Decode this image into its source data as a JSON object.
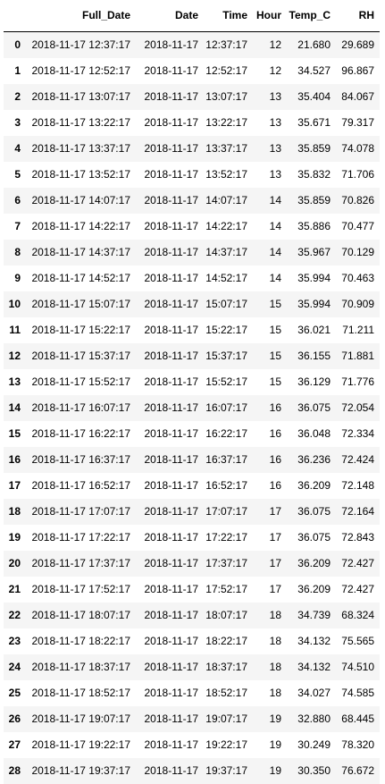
{
  "table": {
    "index_header": "",
    "columns": [
      "Full_Date",
      "Date",
      "Time",
      "Hour",
      "Temp_C",
      "RH"
    ],
    "rows": [
      {
        "index": "0",
        "cells": [
          "2018-11-17 12:37:17",
          "2018-11-17",
          "12:37:17",
          "12",
          "21.680",
          "29.689"
        ]
      },
      {
        "index": "1",
        "cells": [
          "2018-11-17 12:52:17",
          "2018-11-17",
          "12:52:17",
          "12",
          "34.527",
          "96.867"
        ]
      },
      {
        "index": "2",
        "cells": [
          "2018-11-17 13:07:17",
          "2018-11-17",
          "13:07:17",
          "13",
          "35.404",
          "84.067"
        ]
      },
      {
        "index": "3",
        "cells": [
          "2018-11-17 13:22:17",
          "2018-11-17",
          "13:22:17",
          "13",
          "35.671",
          "79.317"
        ]
      },
      {
        "index": "4",
        "cells": [
          "2018-11-17 13:37:17",
          "2018-11-17",
          "13:37:17",
          "13",
          "35.859",
          "74.078"
        ]
      },
      {
        "index": "5",
        "cells": [
          "2018-11-17 13:52:17",
          "2018-11-17",
          "13:52:17",
          "13",
          "35.832",
          "71.706"
        ]
      },
      {
        "index": "6",
        "cells": [
          "2018-11-17 14:07:17",
          "2018-11-17",
          "14:07:17",
          "14",
          "35.859",
          "70.826"
        ]
      },
      {
        "index": "7",
        "cells": [
          "2018-11-17 14:22:17",
          "2018-11-17",
          "14:22:17",
          "14",
          "35.886",
          "70.477"
        ]
      },
      {
        "index": "8",
        "cells": [
          "2018-11-17 14:37:17",
          "2018-11-17",
          "14:37:17",
          "14",
          "35.967",
          "70.129"
        ]
      },
      {
        "index": "9",
        "cells": [
          "2018-11-17 14:52:17",
          "2018-11-17",
          "14:52:17",
          "14",
          "35.994",
          "70.463"
        ]
      },
      {
        "index": "10",
        "cells": [
          "2018-11-17 15:07:17",
          "2018-11-17",
          "15:07:17",
          "15",
          "35.994",
          "70.909"
        ]
      },
      {
        "index": "11",
        "cells": [
          "2018-11-17 15:22:17",
          "2018-11-17",
          "15:22:17",
          "15",
          "36.021",
          "71.211"
        ]
      },
      {
        "index": "12",
        "cells": [
          "2018-11-17 15:37:17",
          "2018-11-17",
          "15:37:17",
          "15",
          "36.155",
          "71.881"
        ]
      },
      {
        "index": "13",
        "cells": [
          "2018-11-17 15:52:17",
          "2018-11-17",
          "15:52:17",
          "15",
          "36.129",
          "71.776"
        ]
      },
      {
        "index": "14",
        "cells": [
          "2018-11-17 16:07:17",
          "2018-11-17",
          "16:07:17",
          "16",
          "36.075",
          "72.054"
        ]
      },
      {
        "index": "15",
        "cells": [
          "2018-11-17 16:22:17",
          "2018-11-17",
          "16:22:17",
          "16",
          "36.048",
          "72.334"
        ]
      },
      {
        "index": "16",
        "cells": [
          "2018-11-17 16:37:17",
          "2018-11-17",
          "16:37:17",
          "16",
          "36.236",
          "72.424"
        ]
      },
      {
        "index": "17",
        "cells": [
          "2018-11-17 16:52:17",
          "2018-11-17",
          "16:52:17",
          "16",
          "36.209",
          "72.148"
        ]
      },
      {
        "index": "18",
        "cells": [
          "2018-11-17 17:07:17",
          "2018-11-17",
          "17:07:17",
          "17",
          "36.075",
          "72.164"
        ]
      },
      {
        "index": "19",
        "cells": [
          "2018-11-17 17:22:17",
          "2018-11-17",
          "17:22:17",
          "17",
          "36.075",
          "72.843"
        ]
      },
      {
        "index": "20",
        "cells": [
          "2018-11-17 17:37:17",
          "2018-11-17",
          "17:37:17",
          "17",
          "36.209",
          "72.427"
        ]
      },
      {
        "index": "21",
        "cells": [
          "2018-11-17 17:52:17",
          "2018-11-17",
          "17:52:17",
          "17",
          "36.209",
          "72.427"
        ]
      },
      {
        "index": "22",
        "cells": [
          "2018-11-17 18:07:17",
          "2018-11-17",
          "18:07:17",
          "18",
          "34.739",
          "68.324"
        ]
      },
      {
        "index": "23",
        "cells": [
          "2018-11-17 18:22:17",
          "2018-11-17",
          "18:22:17",
          "18",
          "34.132",
          "75.565"
        ]
      },
      {
        "index": "24",
        "cells": [
          "2018-11-17 18:37:17",
          "2018-11-17",
          "18:37:17",
          "18",
          "34.132",
          "74.510"
        ]
      },
      {
        "index": "25",
        "cells": [
          "2018-11-17 18:52:17",
          "2018-11-17",
          "18:52:17",
          "18",
          "34.027",
          "74.585"
        ]
      },
      {
        "index": "26",
        "cells": [
          "2018-11-17 19:07:17",
          "2018-11-17",
          "19:07:17",
          "19",
          "32.880",
          "68.445"
        ]
      },
      {
        "index": "27",
        "cells": [
          "2018-11-17 19:22:17",
          "2018-11-17",
          "19:22:17",
          "19",
          "30.249",
          "78.320"
        ]
      },
      {
        "index": "28",
        "cells": [
          "2018-11-17 19:37:17",
          "2018-11-17",
          "19:37:17",
          "19",
          "30.350",
          "76.672"
        ]
      }
    ]
  }
}
